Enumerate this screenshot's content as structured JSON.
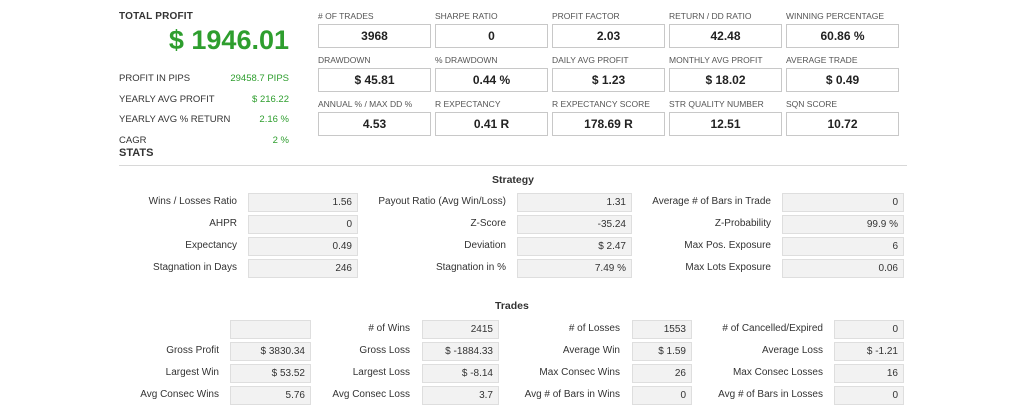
{
  "profit": {
    "title": "TOTAL PROFIT",
    "value": "$ 1946.01",
    "rows": [
      {
        "label": "PROFIT IN PIPS",
        "value": "29458.7 PIPS"
      },
      {
        "label": "YEARLY AVG PROFIT",
        "value": "$ 216.22"
      },
      {
        "label": "YEARLY AVG % RETURN",
        "value": "2.16 %"
      },
      {
        "label": "CAGR",
        "value": "2 %"
      }
    ]
  },
  "metrics": [
    {
      "label": "# OF TRADES",
      "value": "3968"
    },
    {
      "label": "SHARPE RATIO",
      "value": "0"
    },
    {
      "label": "PROFIT FACTOR",
      "value": "2.03"
    },
    {
      "label": "RETURN / DD RATIO",
      "value": "42.48"
    },
    {
      "label": "WINNING PERCENTAGE",
      "value": "60.86 %"
    },
    {
      "label": "DRAWDOWN",
      "value": "$ 45.81"
    },
    {
      "label": "% DRAWDOWN",
      "value": "0.44 %"
    },
    {
      "label": "DAILY AVG PROFIT",
      "value": "$ 1.23"
    },
    {
      "label": "MONTHLY AVG PROFIT",
      "value": "$ 18.02"
    },
    {
      "label": "AVERAGE TRADE",
      "value": "$ 0.49"
    },
    {
      "label": "ANNUAL % / MAX DD %",
      "value": "4.53"
    },
    {
      "label": "R EXPECTANCY",
      "value": "0.41 R"
    },
    {
      "label": "R EXPECTANCY SCORE",
      "value": "178.69 R"
    },
    {
      "label": "STR QUALITY NUMBER",
      "value": "12.51"
    },
    {
      "label": "SQN SCORE",
      "value": "10.72"
    }
  ],
  "stats_heading": "STATS",
  "strategy": {
    "title": "Strategy",
    "rows": [
      [
        {
          "label": "Wins / Losses Ratio",
          "value": "1.56"
        },
        {
          "label": "Payout Ratio (Avg Win/Loss)",
          "value": "1.31"
        },
        {
          "label": "Average # of Bars in Trade",
          "value": "0"
        }
      ],
      [
        {
          "label": "AHPR",
          "value": "0"
        },
        {
          "label": "Z-Score",
          "value": "-35.24"
        },
        {
          "label": "Z-Probability",
          "value": "99.9 %"
        }
      ],
      [
        {
          "label": "Expectancy",
          "value": "0.49"
        },
        {
          "label": "Deviation",
          "value": "$ 2.47"
        },
        {
          "label": "Max Pos. Exposure",
          "value": "6"
        }
      ],
      [
        {
          "label": "Stagnation in Days",
          "value": "246"
        },
        {
          "label": "Stagnation in %",
          "value": "7.49 %"
        },
        {
          "label": "Max Lots Exposure",
          "value": "0.06"
        }
      ]
    ]
  },
  "trades": {
    "title": "Trades",
    "rows": [
      [
        {
          "label": "",
          "value": ""
        },
        {
          "label": "# of Wins",
          "value": "2415"
        },
        {
          "label": "# of Losses",
          "value": "1553"
        },
        {
          "label": "# of Cancelled/Expired",
          "value": "0"
        }
      ],
      [
        {
          "label": "Gross Profit",
          "value": "$ 3830.34"
        },
        {
          "label": "Gross Loss",
          "value": "$ -1884.33"
        },
        {
          "label": "Average Win",
          "value": "$ 1.59"
        },
        {
          "label": "Average Loss",
          "value": "$ -1.21"
        }
      ],
      [
        {
          "label": "Largest Win",
          "value": "$ 53.52"
        },
        {
          "label": "Largest Loss",
          "value": "$ -8.14"
        },
        {
          "label": "Max Consec Wins",
          "value": "26"
        },
        {
          "label": "Max Consec Losses",
          "value": "16"
        }
      ],
      [
        {
          "label": "Avg Consec Wins",
          "value": "5.76"
        },
        {
          "label": "Avg Consec Loss",
          "value": "3.7"
        },
        {
          "label": "Avg # of Bars in Wins",
          "value": "0"
        },
        {
          "label": "Avg # of Bars in Losses",
          "value": "0"
        }
      ]
    ]
  }
}
